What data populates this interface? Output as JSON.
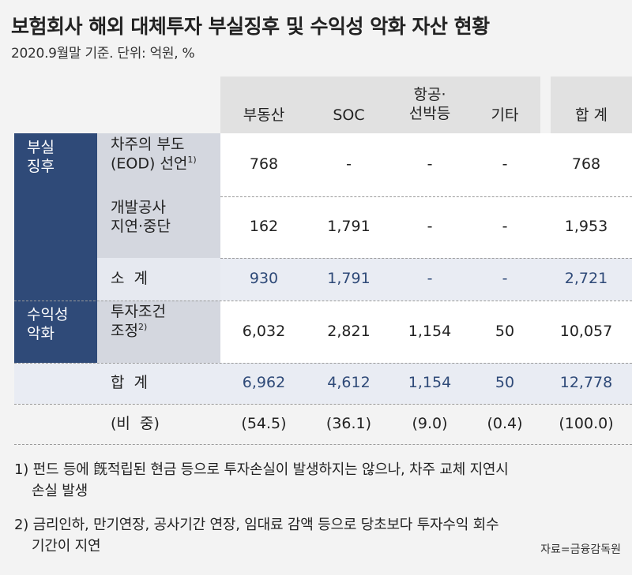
{
  "title": "보험회사 해외 대체투자 부실징후 및 수익성 악화 자산 현황",
  "subtitle": "2020.9월말 기준. 단위: 억원, %",
  "columns": {
    "real_estate": "부동산",
    "soc": "SOC",
    "aviation_line1": "항공·",
    "aviation_line2": "선박등",
    "other": "기타",
    "total": "합 계"
  },
  "sections": {
    "distress_line1": "부실",
    "distress_line2": "징후",
    "profit_line1": "수익성",
    "profit_line2": "악화"
  },
  "rows": {
    "eod": {
      "label_line1": "차주의 부도",
      "label_line2": "(EOD) 선언",
      "label_sup": "1)",
      "values": [
        "768",
        "-",
        "-",
        "-",
        "768"
      ]
    },
    "dev": {
      "label_line1": "개발공사",
      "label_line2": "지연·중단",
      "values": [
        "162",
        "1,791",
        "-",
        "-",
        "1,953"
      ]
    },
    "subtotal": {
      "label": "소  계",
      "values": [
        "930",
        "1,791",
        "-",
        "-",
        "2,721"
      ]
    },
    "terms": {
      "label_line1": "투자조건",
      "label_line2": "조정",
      "label_sup": "2)",
      "values": [
        "6,032",
        "2,821",
        "1,154",
        "50",
        "10,057"
      ]
    },
    "total": {
      "label": "합  계",
      "values": [
        "6,962",
        "4,612",
        "1,154",
        "50",
        "12,778"
      ]
    },
    "share": {
      "label": "(비  중)",
      "values": [
        "(54.5)",
        "(36.1)",
        "(9.0)",
        "(0.4)",
        "(100.0)"
      ]
    }
  },
  "notes": {
    "note1_line1": "1) 펀드 등에 旣적립된 현금 등으로 투자손실이 발생하지는 않으나, 차주 교체 지연시",
    "note1_line2": "손실 발생",
    "note2_line1": "2) 금리인하, 만기연장, 공사기간 연장, 임대료 감액 등으로 당초보다 투자수익 회수",
    "note2_line2": "기간이 지연"
  },
  "source": "자료=금융감독원",
  "colors": {
    "navy": "#2f4a78",
    "header_gray": "#e1e1e1",
    "label_gray": "#d4d7df",
    "light_blue": "#e9ecf3"
  }
}
